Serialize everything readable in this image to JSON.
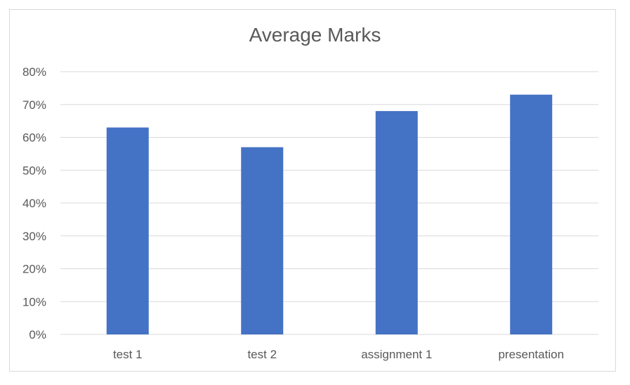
{
  "chart_data": {
    "type": "bar",
    "title": "Average Marks",
    "categories": [
      "test 1",
      "test 2",
      "assignment 1",
      "presentation"
    ],
    "values": [
      63,
      57,
      68,
      73
    ],
    "xlabel": "",
    "ylabel": "",
    "ylim": [
      0,
      80
    ],
    "yticks": [
      "0%",
      "10%",
      "20%",
      "30%",
      "40%",
      "50%",
      "60%",
      "70%",
      "80%"
    ],
    "grid": true,
    "bar_color": "#4472c4",
    "grid_color": "#d9d9d9"
  }
}
